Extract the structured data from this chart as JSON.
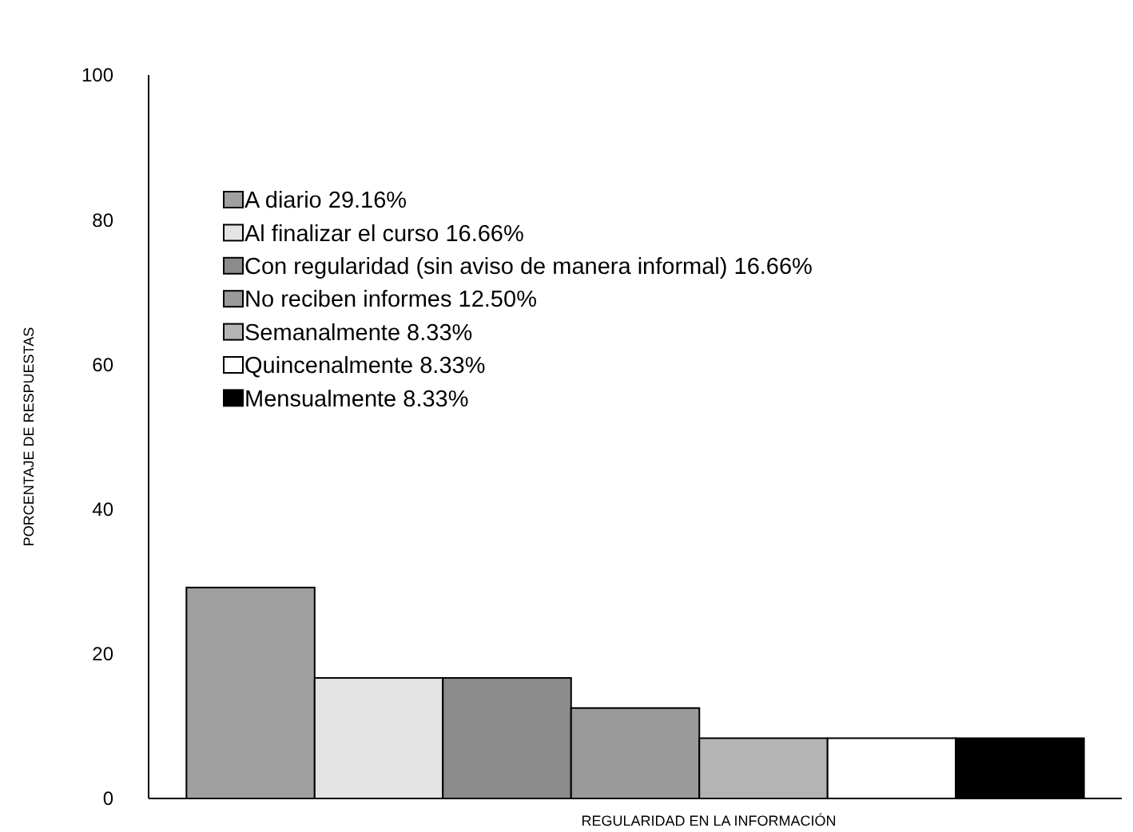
{
  "chart_data": {
    "type": "bar",
    "xlabel": "REGULARIDAD EN LA INFORMACIÓN",
    "ylabel": "PORCENTAJE DE RESPUESTAS",
    "categories": [
      null
    ],
    "series": [
      {
        "name": "A diario 29.16%",
        "color": "#a0a0a0",
        "values": [
          29.16
        ]
      },
      {
        "name": "Al finalizar el curso 16.66%",
        "color": "#e4e4e4",
        "values": [
          16.66
        ]
      },
      {
        "name": "Con regularidad (sin aviso de manera informal) 16.66%",
        "color": "#8c8c8c",
        "values": [
          16.66
        ]
      },
      {
        "name": "No reciben informes 12.50%",
        "color": "#9a9a9a",
        "values": [
          12.5
        ]
      },
      {
        "name": "Semanalmente 8.33%",
        "color": "#b4b4b4",
        "values": [
          8.33
        ]
      },
      {
        "name": "Quincenalmente 8.33%",
        "color": "#ffffff",
        "values": [
          8.33
        ]
      },
      {
        "name": "Mensualmente 8.33%",
        "color": "#000000",
        "values": [
          8.33
        ]
      }
    ],
    "ylim": [
      0,
      100
    ],
    "yticks": [
      0,
      20,
      40,
      60,
      80,
      100
    ],
    "grid": false,
    "legend": "top left"
  }
}
